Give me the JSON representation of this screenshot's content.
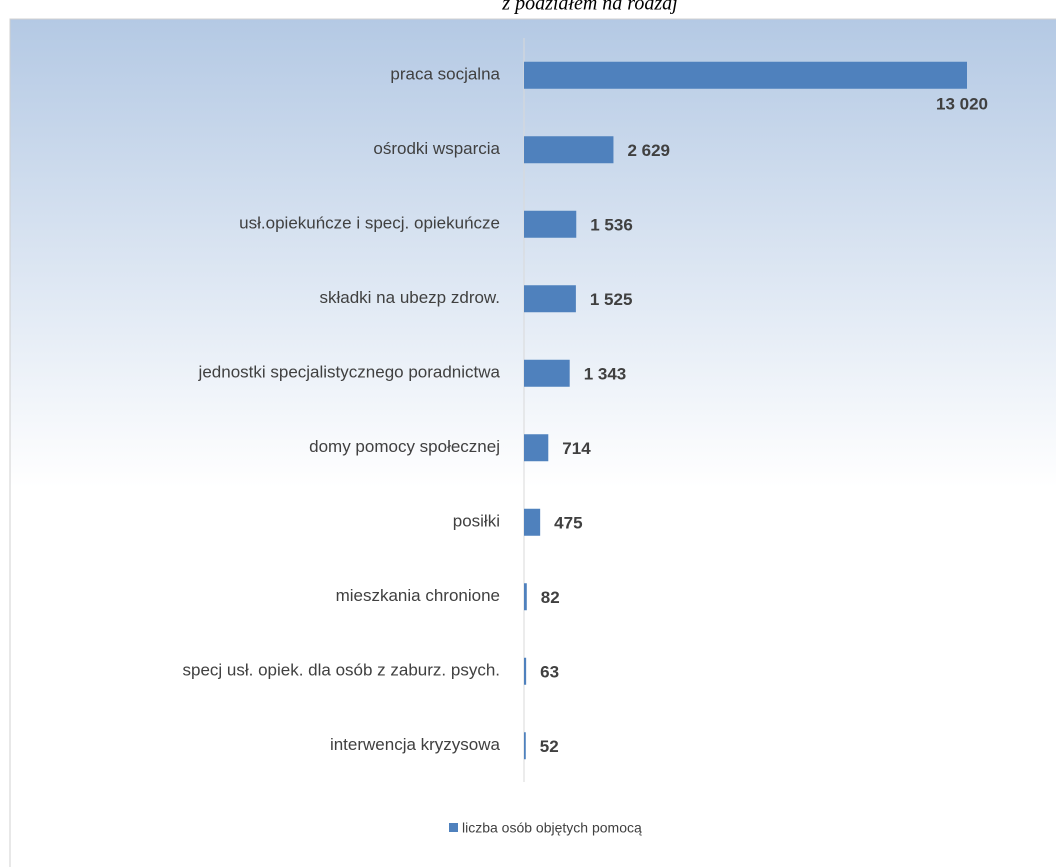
{
  "chart_data": {
    "type": "barh",
    "title": "z podziałem na rodzaj",
    "categories": [
      "praca socjalna",
      "ośrodki wsparcia",
      "usł.opiekuńcze i specj. opiekuńcze",
      "składki na ubezp zdrow.",
      "jednostki specjalistycznego poradnictwa",
      "domy pomocy społecznej",
      "posiłki",
      "mieszkania chronione",
      "specj usł. opiek. dla osób z zaburz. psych.",
      "interwencja kryzysowa"
    ],
    "series": [
      {
        "name": "liczba osób objętych pomocą",
        "color": "#4f81bd",
        "values": [
          13020,
          2629,
          1536,
          1525,
          1343,
          714,
          475,
          82,
          63,
          52
        ],
        "value_labels": [
          "13 020",
          "2 629",
          "1 536",
          "1 525",
          "1 343",
          "714",
          "475",
          "82",
          "63",
          "52"
        ]
      }
    ],
    "legend": "bottom"
  }
}
